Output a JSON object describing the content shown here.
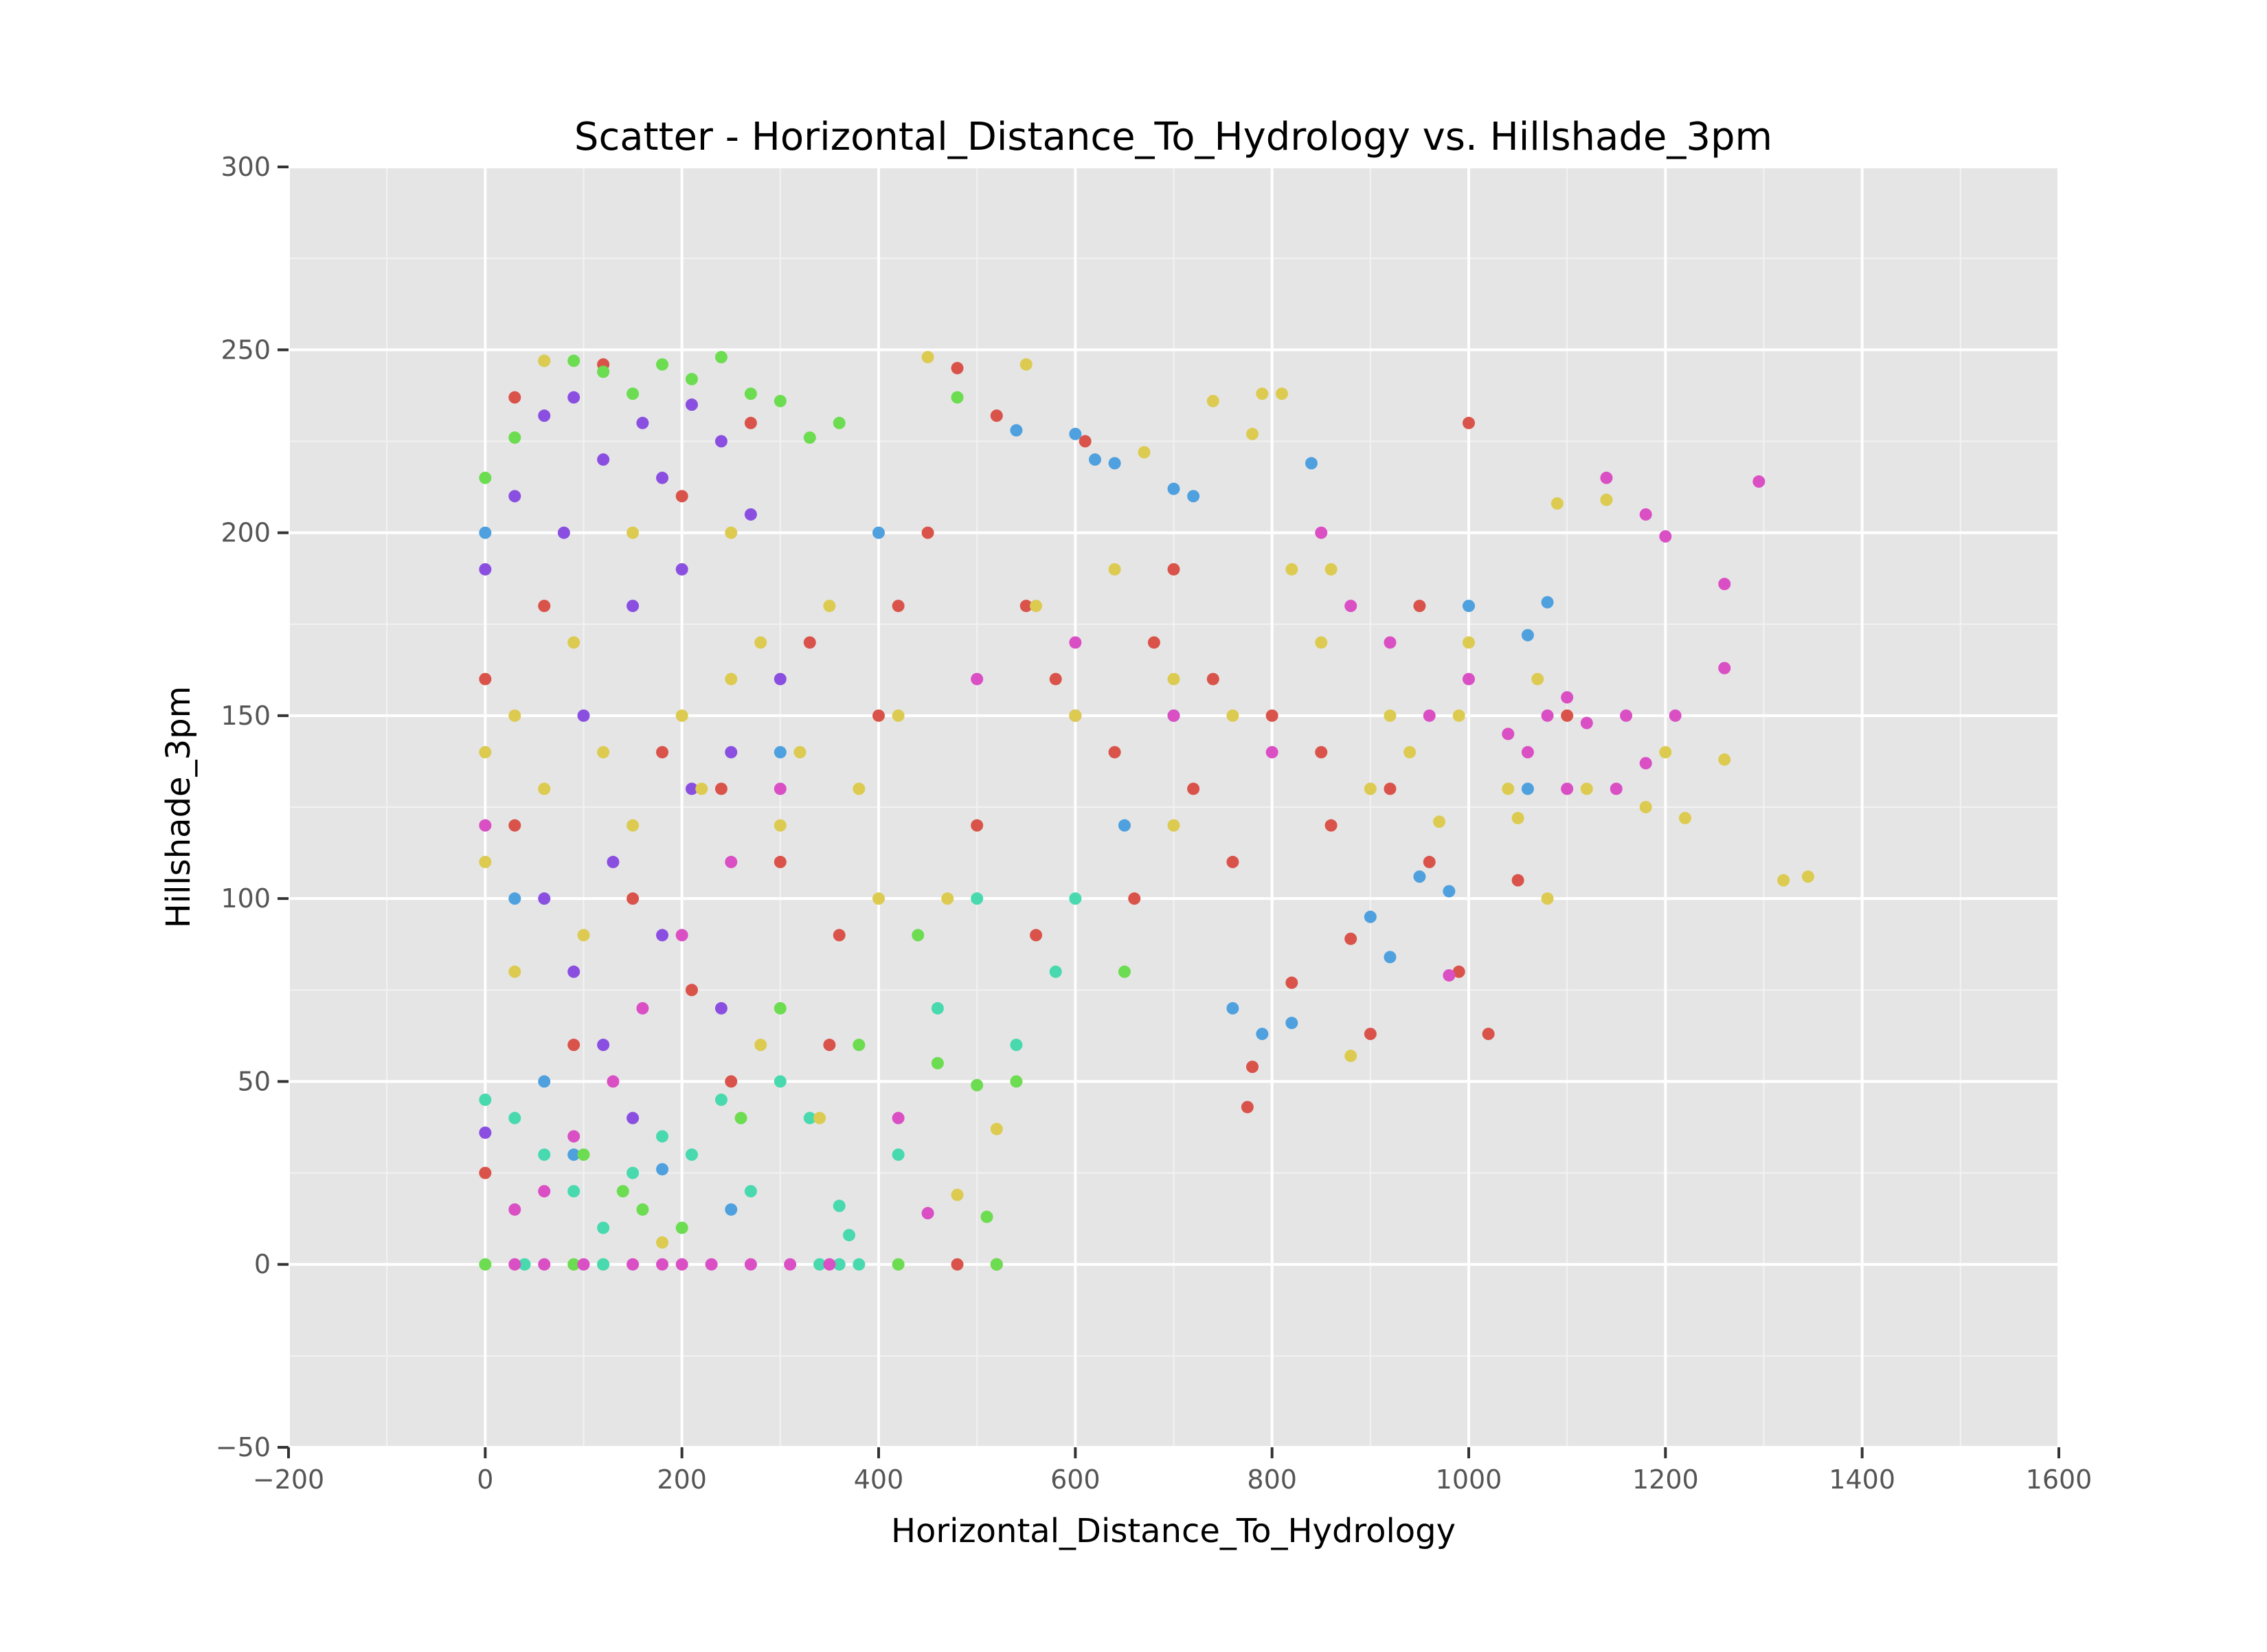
{
  "chart_data": {
    "type": "scatter",
    "title": "Scatter - Horizontal_Distance_To_Hydrology vs. Hillshade_3pm",
    "xlabel": "Horizontal_Distance_To_Hydrology",
    "ylabel": "Hillshade_3pm",
    "xlim": [
      -200,
      1600
    ],
    "ylim": [
      -50,
      300
    ],
    "x_ticks": [
      "−200",
      "0",
      "200",
      "400",
      "600",
      "800",
      "1000",
      "1200",
      "1400",
      "1600"
    ],
    "y_ticks": [
      "−50",
      "0",
      "50",
      "100",
      "150",
      "200",
      "250",
      "300"
    ],
    "grid": true,
    "legend": "none",
    "background": "#e5e5e5",
    "series": [
      {
        "color": "#d9534a",
        "points": [
          [
            0,
            25
          ],
          [
            0,
            160
          ],
          [
            30,
            237
          ],
          [
            30,
            120
          ],
          [
            60,
            180
          ],
          [
            90,
            60
          ],
          [
            120,
            246
          ],
          [
            150,
            100
          ],
          [
            180,
            140
          ],
          [
            210,
            75
          ],
          [
            240,
            130
          ],
          [
            270,
            230
          ],
          [
            300,
            110
          ],
          [
            330,
            170
          ],
          [
            360,
            90
          ],
          [
            400,
            150
          ],
          [
            450,
            200
          ],
          [
            480,
            245
          ],
          [
            500,
            120
          ],
          [
            520,
            232
          ],
          [
            550,
            180
          ],
          [
            580,
            160
          ],
          [
            610,
            225
          ],
          [
            640,
            140
          ],
          [
            660,
            100
          ],
          [
            700,
            190
          ],
          [
            720,
            130
          ],
          [
            760,
            110
          ],
          [
            780,
            54
          ],
          [
            775,
            43
          ],
          [
            800,
            150
          ],
          [
            820,
            77
          ],
          [
            850,
            140
          ],
          [
            880,
            89
          ],
          [
            900,
            63
          ],
          [
            920,
            130
          ],
          [
            950,
            180
          ],
          [
            990,
            80
          ],
          [
            1000,
            230
          ],
          [
            1020,
            63
          ],
          [
            1050,
            105
          ],
          [
            1100,
            150
          ],
          [
            480,
            0
          ],
          [
            520,
            0
          ],
          [
            200,
            210
          ],
          [
            250,
            50
          ],
          [
            350,
            60
          ],
          [
            420,
            180
          ],
          [
            560,
            90
          ],
          [
            600,
            150
          ],
          [
            680,
            170
          ],
          [
            740,
            160
          ],
          [
            860,
            120
          ],
          [
            960,
            110
          ]
        ]
      },
      {
        "color": "#8a4fe0",
        "points": [
          [
            0,
            36
          ],
          [
            0,
            190
          ],
          [
            30,
            210
          ],
          [
            60,
            232
          ],
          [
            90,
            237
          ],
          [
            120,
            220
          ],
          [
            150,
            180
          ],
          [
            180,
            215
          ],
          [
            210,
            235
          ],
          [
            240,
            225
          ],
          [
            270,
            205
          ],
          [
            300,
            160
          ],
          [
            60,
            100
          ],
          [
            90,
            80
          ],
          [
            120,
            60
          ],
          [
            150,
            40
          ],
          [
            180,
            90
          ],
          [
            210,
            130
          ],
          [
            240,
            70
          ],
          [
            100,
            150
          ],
          [
            80,
            200
          ],
          [
            130,
            110
          ],
          [
            160,
            230
          ],
          [
            200,
            190
          ],
          [
            250,
            140
          ]
        ]
      },
      {
        "color": "#4fa0de",
        "points": [
          [
            0,
            200
          ],
          [
            30,
            100
          ],
          [
            60,
            50
          ],
          [
            90,
            30
          ],
          [
            180,
            26
          ],
          [
            250,
            15
          ],
          [
            300,
            140
          ],
          [
            400,
            200
          ],
          [
            540,
            228
          ],
          [
            600,
            227
          ],
          [
            620,
            220
          ],
          [
            640,
            219
          ],
          [
            700,
            212
          ],
          [
            720,
            210
          ],
          [
            760,
            70
          ],
          [
            790,
            63
          ],
          [
            820,
            66
          ],
          [
            840,
            219
          ],
          [
            900,
            95
          ],
          [
            920,
            84
          ],
          [
            950,
            106
          ],
          [
            980,
            102
          ],
          [
            1000,
            180
          ],
          [
            1060,
            172
          ],
          [
            1080,
            181
          ],
          [
            1060,
            130
          ],
          [
            700,
            150
          ],
          [
            650,
            120
          ]
        ]
      },
      {
        "color": "#6cdc50",
        "points": [
          [
            0,
            0
          ],
          [
            0,
            215
          ],
          [
            30,
            226
          ],
          [
            60,
            247
          ],
          [
            90,
            247
          ],
          [
            120,
            244
          ],
          [
            150,
            238
          ],
          [
            180,
            246
          ],
          [
            210,
            242
          ],
          [
            240,
            248
          ],
          [
            270,
            238
          ],
          [
            300,
            236
          ],
          [
            330,
            226
          ],
          [
            360,
            230
          ],
          [
            420,
            0
          ],
          [
            460,
            55
          ],
          [
            500,
            49
          ],
          [
            510,
            13
          ],
          [
            520,
            0
          ],
          [
            540,
            50
          ],
          [
            650,
            80
          ],
          [
            100,
            30
          ],
          [
            140,
            20
          ],
          [
            200,
            10
          ],
          [
            260,
            40
          ],
          [
            300,
            70
          ],
          [
            380,
            60
          ],
          [
            440,
            90
          ],
          [
            480,
            237
          ],
          [
            90,
            0
          ],
          [
            120,
            0
          ],
          [
            160,
            15
          ]
        ]
      },
      {
        "color": "#48d9ae",
        "points": [
          [
            0,
            45
          ],
          [
            30,
            40
          ],
          [
            60,
            30
          ],
          [
            90,
            20
          ],
          [
            120,
            10
          ],
          [
            150,
            25
          ],
          [
            180,
            35
          ],
          [
            210,
            30
          ],
          [
            240,
            45
          ],
          [
            270,
            20
          ],
          [
            300,
            50
          ],
          [
            330,
            40
          ],
          [
            360,
            16
          ],
          [
            370,
            8
          ],
          [
            380,
            0
          ],
          [
            420,
            30
          ],
          [
            460,
            70
          ],
          [
            500,
            100
          ],
          [
            540,
            60
          ],
          [
            580,
            80
          ],
          [
            600,
            100
          ],
          [
            340,
            0
          ],
          [
            360,
            0
          ],
          [
            120,
            0
          ],
          [
            40,
            0
          ]
        ]
      },
      {
        "color": "#da4fc4",
        "points": [
          [
            0,
            120
          ],
          [
            30,
            0
          ],
          [
            60,
            0
          ],
          [
            100,
            0
          ],
          [
            150,
            0
          ],
          [
            180,
            0
          ],
          [
            200,
            0
          ],
          [
            230,
            0
          ],
          [
            270,
            0
          ],
          [
            310,
            0
          ],
          [
            350,
            0
          ],
          [
            30,
            15
          ],
          [
            60,
            20
          ],
          [
            90,
            35
          ],
          [
            130,
            50
          ],
          [
            160,
            70
          ],
          [
            200,
            90
          ],
          [
            250,
            110
          ],
          [
            300,
            130
          ],
          [
            450,
            14
          ],
          [
            420,
            40
          ],
          [
            500,
            160
          ],
          [
            600,
            170
          ],
          [
            700,
            150
          ],
          [
            800,
            140
          ],
          [
            850,
            200
          ],
          [
            880,
            180
          ],
          [
            920,
            170
          ],
          [
            960,
            150
          ],
          [
            1000,
            160
          ],
          [
            1040,
            145
          ],
          [
            1080,
            150
          ],
          [
            1100,
            155
          ],
          [
            1120,
            148
          ],
          [
            1140,
            215
          ],
          [
            1160,
            150
          ],
          [
            1180,
            205
          ],
          [
            1200,
            199
          ],
          [
            1210,
            150
          ],
          [
            1260,
            186
          ],
          [
            1260,
            163
          ],
          [
            1295,
            214
          ],
          [
            1060,
            140
          ],
          [
            1100,
            130
          ],
          [
            1150,
            130
          ],
          [
            1180,
            137
          ],
          [
            980,
            79
          ]
        ]
      },
      {
        "color": "#dccb50",
        "points": [
          [
            0,
            110
          ],
          [
            0,
            140
          ],
          [
            30,
            150
          ],
          [
            30,
            80
          ],
          [
            60,
            247
          ],
          [
            60,
            130
          ],
          [
            90,
            170
          ],
          [
            120,
            140
          ],
          [
            150,
            120
          ],
          [
            180,
            6
          ],
          [
            200,
            150
          ],
          [
            220,
            130
          ],
          [
            250,
            160
          ],
          [
            280,
            170
          ],
          [
            300,
            120
          ],
          [
            320,
            140
          ],
          [
            350,
            180
          ],
          [
            380,
            130
          ],
          [
            420,
            150
          ],
          [
            450,
            248
          ],
          [
            470,
            100
          ],
          [
            480,
            19
          ],
          [
            520,
            37
          ],
          [
            550,
            246
          ],
          [
            600,
            150
          ],
          [
            640,
            190
          ],
          [
            670,
            222
          ],
          [
            700,
            160
          ],
          [
            740,
            236
          ],
          [
            760,
            150
          ],
          [
            780,
            227
          ],
          [
            790,
            238
          ],
          [
            810,
            238
          ],
          [
            820,
            190
          ],
          [
            850,
            170
          ],
          [
            880,
            57
          ],
          [
            900,
            130
          ],
          [
            940,
            140
          ],
          [
            970,
            121
          ],
          [
            1000,
            170
          ],
          [
            1040,
            130
          ],
          [
            1050,
            122
          ],
          [
            1080,
            100
          ],
          [
            1090,
            208
          ],
          [
            1120,
            130
          ],
          [
            1140,
            209
          ],
          [
            1180,
            125
          ],
          [
            1200,
            140
          ],
          [
            1220,
            122
          ],
          [
            1260,
            138
          ],
          [
            1320,
            105
          ],
          [
            1345,
            106
          ],
          [
            1070,
            160
          ],
          [
            990,
            150
          ],
          [
            920,
            150
          ],
          [
            860,
            190
          ],
          [
            700,
            120
          ],
          [
            560,
            180
          ],
          [
            400,
            100
          ],
          [
            250,
            200
          ],
          [
            150,
            200
          ],
          [
            100,
            90
          ],
          [
            280,
            60
          ],
          [
            340,
            40
          ]
        ]
      }
    ]
  }
}
